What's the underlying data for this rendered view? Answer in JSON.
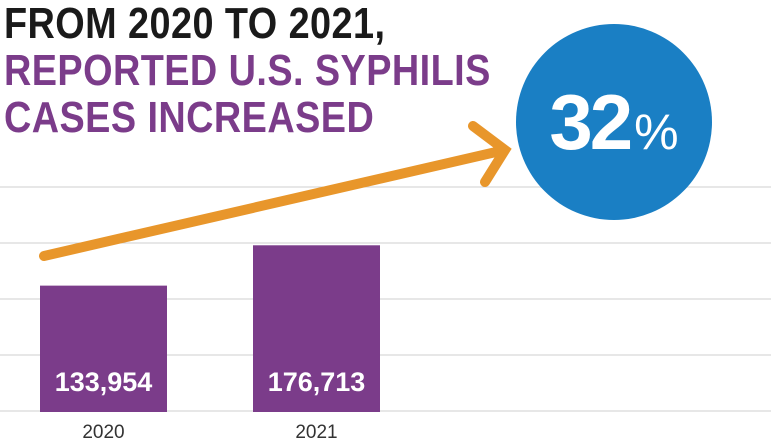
{
  "headline": {
    "line1": "FROM 2020 TO 2021,",
    "line2": "REPORTED U.S. SYPHILIS",
    "line3": "CASES INCREASED"
  },
  "badge": {
    "number": "32",
    "unit": "%"
  },
  "colors": {
    "bar": "#7b3c8a",
    "arrow": "#e8962b",
    "badge": "#1a7fc4",
    "headline_dark": "#1a1a1a",
    "headline_accent": "#7b3c8a",
    "grid": "#cfcfcf"
  },
  "chart_data": {
    "type": "bar",
    "title": "FROM 2020 TO 2021, REPORTED U.S. SYPHILIS CASES INCREASED",
    "categories": [
      "2020",
      "2021"
    ],
    "values": [
      133954,
      176713
    ],
    "value_labels": [
      "133,954",
      "176,713"
    ],
    "xlabel": "",
    "ylabel": "",
    "ylim": [
      0,
      265000
    ],
    "grid": true,
    "annotation": "32%"
  }
}
